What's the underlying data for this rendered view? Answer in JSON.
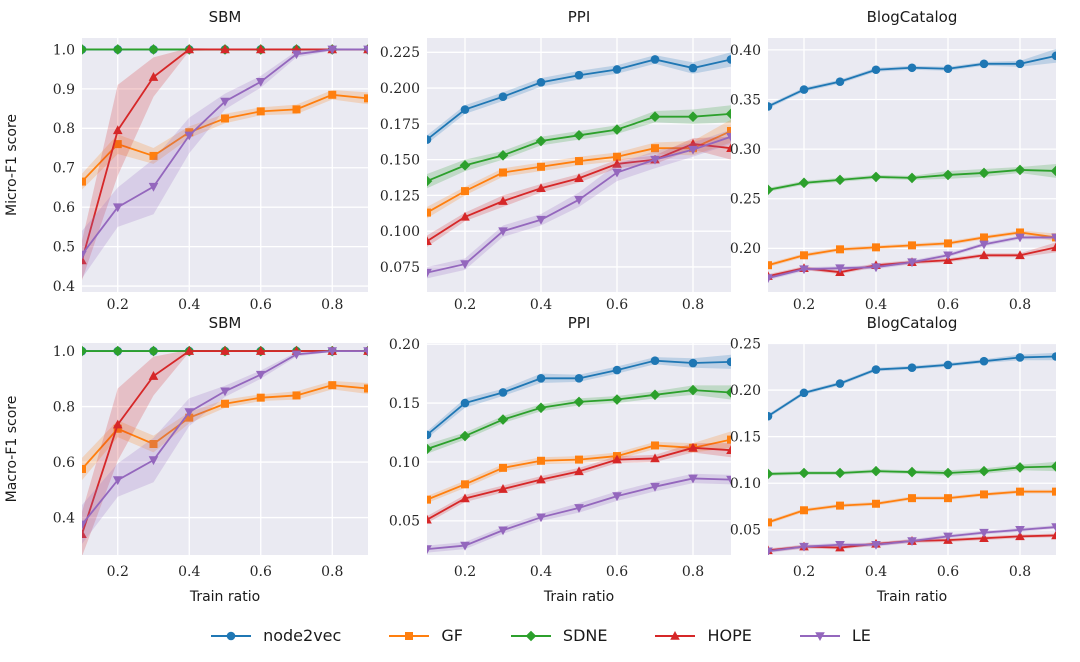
{
  "figure": {
    "plot_background": "#eaeaf2",
    "grid_color": "#ffffff",
    "tick_color": "#262626",
    "row1_ylabel": "Micro-F1 score",
    "row2_ylabel": "Macro-F1 score",
    "xlabel": "Train ratio"
  },
  "legend": {
    "items": [
      {
        "name": "node2vec",
        "label": "node2vec",
        "color": "#1f77b4",
        "marker": "circle"
      },
      {
        "name": "gf",
        "label": "GF",
        "color": "#ff7f0e",
        "marker": "square"
      },
      {
        "name": "sdne",
        "label": "SDNE",
        "color": "#2ca02c",
        "marker": "diamond"
      },
      {
        "name": "hope",
        "label": "HOPE",
        "color": "#d62728",
        "marker": "triangle-up"
      },
      {
        "name": "le",
        "label": "LE",
        "color": "#9467bd",
        "marker": "triangle-down"
      }
    ]
  },
  "chart_data": [
    {
      "id": "sbm-micro-f1",
      "type": "line",
      "title": "SBM",
      "ylabel": "Micro-F1 score",
      "xlabel": "",
      "grid": true,
      "legend_position": "bottom-figure",
      "x": [
        0.1,
        0.2,
        0.3,
        0.4,
        0.5,
        0.6,
        0.7,
        0.8,
        0.9
      ],
      "xlim": [
        0.1,
        0.9
      ],
      "ylim": [
        0.385,
        1.029
      ],
      "xtick_values": [
        0.2,
        0.4,
        0.6,
        0.8
      ],
      "xtick_labels": [
        "0.2",
        "0.4",
        "0.6",
        "0.8"
      ],
      "ytick_values": [
        0.4,
        0.5,
        0.6,
        0.7,
        0.8,
        0.9,
        1.0
      ],
      "ytick_labels": [
        "0.4",
        "0.5",
        "0.6",
        "0.7",
        "0.8",
        "0.9",
        "1.0"
      ],
      "series": [
        {
          "name": "node2vec",
          "values": [
            1.0,
            1.0,
            1.0,
            1.0,
            1.0,
            1.0,
            1.0,
            1.0,
            1.0
          ],
          "band": 0.002
        },
        {
          "name": "gf",
          "values": [
            0.665,
            0.76,
            0.73,
            0.79,
            0.825,
            0.843,
            0.848,
            0.885,
            0.876
          ],
          "band": [
            0.02,
            0.025,
            0.02,
            0.015,
            0.012,
            0.01,
            0.012,
            0.012,
            0.015
          ]
        },
        {
          "name": "sdne",
          "values": [
            1.0,
            1.0,
            1.0,
            1.0,
            1.0,
            1.0,
            1.0,
            1.0,
            1.0
          ],
          "band": 0.002
        },
        {
          "name": "hope",
          "values": [
            0.465,
            0.795,
            0.93,
            1.0,
            1.0,
            1.0,
            1.0,
            1.0,
            1.0
          ],
          "band": [
            0.05,
            0.115,
            0.05,
            0.004,
            0.001,
            0.001,
            0.001,
            0.001,
            0.001
          ]
        },
        {
          "name": "le",
          "values": [
            0.48,
            0.6,
            0.652,
            0.782,
            0.868,
            0.918,
            0.988,
            1.0,
            1.0
          ],
          "band": [
            0.06,
            0.05,
            0.07,
            0.045,
            0.02,
            0.015,
            0.008,
            0.003,
            0.002
          ]
        }
      ]
    },
    {
      "id": "ppi-micro-f1",
      "type": "line",
      "title": "PPI",
      "ylabel": "",
      "xlabel": "",
      "grid": true,
      "x": [
        0.1,
        0.2,
        0.3,
        0.4,
        0.5,
        0.6,
        0.7,
        0.8,
        0.9
      ],
      "xlim": [
        0.1,
        0.9
      ],
      "ylim": [
        0.0575,
        0.235
      ],
      "xtick_values": [
        0.2,
        0.4,
        0.6,
        0.8
      ],
      "xtick_labels": [
        "0.2",
        "0.4",
        "0.6",
        "0.8"
      ],
      "ytick_values": [
        0.075,
        0.1,
        0.125,
        0.15,
        0.175,
        0.2,
        0.225
      ],
      "ytick_labels": [
        "0.075",
        "0.100",
        "0.125",
        "0.150",
        "0.175",
        "0.200",
        "0.225"
      ],
      "series": [
        {
          "name": "node2vec",
          "values": [
            0.164,
            0.185,
            0.194,
            0.204,
            0.209,
            0.213,
            0.22,
            0.214,
            0.22
          ],
          "band": [
            0.003,
            0.003,
            0.003,
            0.003,
            0.003,
            0.003,
            0.003,
            0.004,
            0.005
          ]
        },
        {
          "name": "gf",
          "values": [
            0.113,
            0.128,
            0.141,
            0.145,
            0.149,
            0.152,
            0.158,
            0.158,
            0.17
          ],
          "band": [
            0.004,
            0.003,
            0.003,
            0.003,
            0.003,
            0.003,
            0.004,
            0.005,
            0.008
          ]
        },
        {
          "name": "sdne",
          "values": [
            0.135,
            0.146,
            0.153,
            0.163,
            0.167,
            0.171,
            0.18,
            0.18,
            0.182
          ],
          "band": [
            0.005,
            0.004,
            0.003,
            0.003,
            0.003,
            0.003,
            0.004,
            0.005,
            0.006
          ]
        },
        {
          "name": "hope",
          "values": [
            0.093,
            0.11,
            0.121,
            0.13,
            0.137,
            0.147,
            0.15,
            0.161,
            0.158
          ],
          "band": [
            0.004,
            0.003,
            0.004,
            0.003,
            0.003,
            0.003,
            0.003,
            0.004,
            0.008
          ]
        },
        {
          "name": "le",
          "values": [
            0.071,
            0.077,
            0.1,
            0.108,
            0.122,
            0.141,
            0.15,
            0.157,
            0.166
          ],
          "band": [
            0.004,
            0.004,
            0.004,
            0.004,
            0.005,
            0.006,
            0.006,
            0.005,
            0.005
          ]
        }
      ]
    },
    {
      "id": "blogcatalog-micro-f1",
      "type": "line",
      "title": "BlogCatalog",
      "ylabel": "",
      "xlabel": "",
      "grid": true,
      "x": [
        0.1,
        0.2,
        0.3,
        0.4,
        0.5,
        0.6,
        0.7,
        0.8,
        0.9
      ],
      "xlim": [
        0.1,
        0.9
      ],
      "ylim": [
        0.156,
        0.412
      ],
      "xtick_values": [
        0.2,
        0.4,
        0.6,
        0.8
      ],
      "xtick_labels": [
        "0.2",
        "0.4",
        "0.6",
        "0.8"
      ],
      "ytick_values": [
        0.2,
        0.25,
        0.3,
        0.35,
        0.4
      ],
      "ytick_labels": [
        "0.20",
        "0.25",
        "0.30",
        "0.35",
        "0.40"
      ],
      "series": [
        {
          "name": "node2vec",
          "values": [
            0.343,
            0.36,
            0.368,
            0.38,
            0.382,
            0.381,
            0.386,
            0.386,
            0.394
          ],
          "band": [
            0.002,
            0.002,
            0.002,
            0.002,
            0.002,
            0.002,
            0.002,
            0.003,
            0.007
          ]
        },
        {
          "name": "gf",
          "values": [
            0.183,
            0.193,
            0.199,
            0.201,
            0.203,
            0.205,
            0.211,
            0.216,
            0.211
          ],
          "band": [
            0.002,
            0.002,
            0.002,
            0.002,
            0.002,
            0.002,
            0.002,
            0.002,
            0.004
          ]
        },
        {
          "name": "sdne",
          "values": [
            0.259,
            0.266,
            0.269,
            0.272,
            0.271,
            0.274,
            0.276,
            0.279,
            0.278
          ],
          "band": [
            0.002,
            0.002,
            0.002,
            0.002,
            0.002,
            0.004,
            0.004,
            0.003,
            0.007
          ]
        },
        {
          "name": "hope",
          "values": [
            0.172,
            0.18,
            0.176,
            0.183,
            0.186,
            0.188,
            0.193,
            0.193,
            0.201
          ],
          "band": [
            0.002,
            0.002,
            0.002,
            0.002,
            0.002,
            0.002,
            0.002,
            0.002,
            0.005
          ]
        },
        {
          "name": "le",
          "values": [
            0.17,
            0.179,
            0.18,
            0.181,
            0.186,
            0.193,
            0.204,
            0.211,
            0.211
          ],
          "band": 0.002
        }
      ]
    },
    {
      "id": "sbm-macro-f1",
      "type": "line",
      "title": "SBM",
      "ylabel": "Macro-F1 score",
      "xlabel": "Train ratio",
      "grid": true,
      "x": [
        0.1,
        0.2,
        0.3,
        0.4,
        0.5,
        0.6,
        0.7,
        0.8,
        0.9
      ],
      "xlim": [
        0.1,
        0.9
      ],
      "ylim": [
        0.265,
        1.029
      ],
      "xtick_values": [
        0.2,
        0.4,
        0.6,
        0.8
      ],
      "xtick_labels": [
        "0.2",
        "0.4",
        "0.6",
        "0.8"
      ],
      "ytick_values": [
        0.4,
        0.6,
        0.8,
        1.0
      ],
      "ytick_labels": [
        "0.4",
        "0.6",
        "0.8",
        "1.0"
      ],
      "series": [
        {
          "name": "node2vec",
          "values": [
            1.0,
            1.0,
            1.0,
            1.0,
            1.0,
            1.0,
            1.0,
            1.0,
            1.0
          ],
          "band": 0.002
        },
        {
          "name": "gf",
          "values": [
            0.575,
            0.72,
            0.665,
            0.76,
            0.81,
            0.832,
            0.84,
            0.877,
            0.865
          ],
          "band": [
            0.04,
            0.03,
            0.03,
            0.02,
            0.015,
            0.012,
            0.015,
            0.015,
            0.02
          ]
        },
        {
          "name": "sdne",
          "values": [
            1.0,
            1.0,
            1.0,
            1.0,
            1.0,
            1.0,
            1.0,
            1.0,
            1.0
          ],
          "band": 0.002
        },
        {
          "name": "hope",
          "values": [
            0.34,
            0.735,
            0.91,
            1.0,
            1.0,
            1.0,
            1.0,
            1.0,
            1.0
          ],
          "band": [
            0.08,
            0.13,
            0.07,
            0.004,
            0.001,
            0.001,
            0.001,
            0.001,
            0.001
          ]
        },
        {
          "name": "le",
          "values": [
            0.375,
            0.535,
            0.607,
            0.78,
            0.855,
            0.915,
            0.988,
            1.0,
            1.0
          ],
          "band": [
            0.07,
            0.06,
            0.08,
            0.05,
            0.02,
            0.015,
            0.008,
            0.003,
            0.002
          ]
        }
      ]
    },
    {
      "id": "ppi-macro-f1",
      "type": "line",
      "title": "PPI",
      "ylabel": "",
      "xlabel": "Train ratio",
      "grid": true,
      "x": [
        0.1,
        0.2,
        0.3,
        0.4,
        0.5,
        0.6,
        0.7,
        0.8,
        0.9
      ],
      "xlim": [
        0.1,
        0.9
      ],
      "ylim": [
        0.021,
        0.201
      ],
      "xtick_values": [
        0.2,
        0.4,
        0.6,
        0.8
      ],
      "xtick_labels": [
        "0.2",
        "0.4",
        "0.6",
        "0.8"
      ],
      "ytick_values": [
        0.05,
        0.1,
        0.15,
        0.2
      ],
      "ytick_labels": [
        "0.05",
        "0.10",
        "0.15",
        "0.20"
      ],
      "series": [
        {
          "name": "node2vec",
          "values": [
            0.123,
            0.15,
            0.159,
            0.171,
            0.171,
            0.178,
            0.186,
            0.184,
            0.185
          ],
          "band": [
            0.003,
            0.004,
            0.003,
            0.004,
            0.003,
            0.003,
            0.003,
            0.004,
            0.006
          ]
        },
        {
          "name": "gf",
          "values": [
            0.068,
            0.081,
            0.095,
            0.101,
            0.102,
            0.105,
            0.114,
            0.112,
            0.119
          ],
          "band": [
            0.003,
            0.003,
            0.003,
            0.003,
            0.003,
            0.003,
            0.003,
            0.004,
            0.007
          ]
        },
        {
          "name": "sdne",
          "values": [
            0.111,
            0.122,
            0.136,
            0.146,
            0.151,
            0.153,
            0.157,
            0.161,
            0.159
          ],
          "band": [
            0.004,
            0.003,
            0.003,
            0.003,
            0.003,
            0.003,
            0.003,
            0.004,
            0.006
          ]
        },
        {
          "name": "hope",
          "values": [
            0.051,
            0.069,
            0.077,
            0.085,
            0.092,
            0.102,
            0.103,
            0.112,
            0.11
          ],
          "band": [
            0.003,
            0.003,
            0.003,
            0.003,
            0.003,
            0.003,
            0.003,
            0.004,
            0.006
          ]
        },
        {
          "name": "le",
          "values": [
            0.026,
            0.029,
            0.042,
            0.053,
            0.061,
            0.071,
            0.079,
            0.086,
            0.085
          ],
          "band": [
            0.003,
            0.003,
            0.003,
            0.003,
            0.004,
            0.004,
            0.004,
            0.004,
            0.004
          ]
        }
      ]
    },
    {
      "id": "blogcatalog-macro-f1",
      "type": "line",
      "title": "BlogCatalog",
      "ylabel": "",
      "xlabel": "Train ratio",
      "grid": true,
      "x": [
        0.1,
        0.2,
        0.3,
        0.4,
        0.5,
        0.6,
        0.7,
        0.8,
        0.9
      ],
      "xlim": [
        0.1,
        0.9
      ],
      "ylim": [
        0.023,
        0.2505
      ],
      "xtick_values": [
        0.2,
        0.4,
        0.6,
        0.8
      ],
      "xtick_labels": [
        "0.2",
        "0.4",
        "0.6",
        "0.8"
      ],
      "ytick_values": [
        0.05,
        0.1,
        0.15,
        0.2,
        0.25
      ],
      "ytick_labels": [
        "0.05",
        "0.10",
        "0.15",
        "0.20",
        "0.25"
      ],
      "series": [
        {
          "name": "node2vec",
          "values": [
            0.172,
            0.197,
            0.207,
            0.222,
            0.224,
            0.227,
            0.231,
            0.235,
            0.236
          ],
          "band": [
            0.002,
            0.002,
            0.002,
            0.002,
            0.002,
            0.002,
            0.002,
            0.003,
            0.004
          ]
        },
        {
          "name": "gf",
          "values": [
            0.058,
            0.071,
            0.076,
            0.078,
            0.084,
            0.084,
            0.088,
            0.091,
            0.091
          ],
          "band": 0.002
        },
        {
          "name": "sdne",
          "values": [
            0.11,
            0.111,
            0.111,
            0.113,
            0.112,
            0.111,
            0.113,
            0.117,
            0.118
          ],
          "band": [
            0.002,
            0.002,
            0.002,
            0.002,
            0.002,
            0.003,
            0.003,
            0.003,
            0.005
          ]
        },
        {
          "name": "hope",
          "values": [
            0.028,
            0.032,
            0.031,
            0.035,
            0.038,
            0.039,
            0.041,
            0.043,
            0.044
          ],
          "band": 0.002
        },
        {
          "name": "le",
          "values": [
            0.027,
            0.032,
            0.034,
            0.034,
            0.038,
            0.043,
            0.047,
            0.05,
            0.053
          ],
          "band": 0.002
        }
      ]
    }
  ]
}
